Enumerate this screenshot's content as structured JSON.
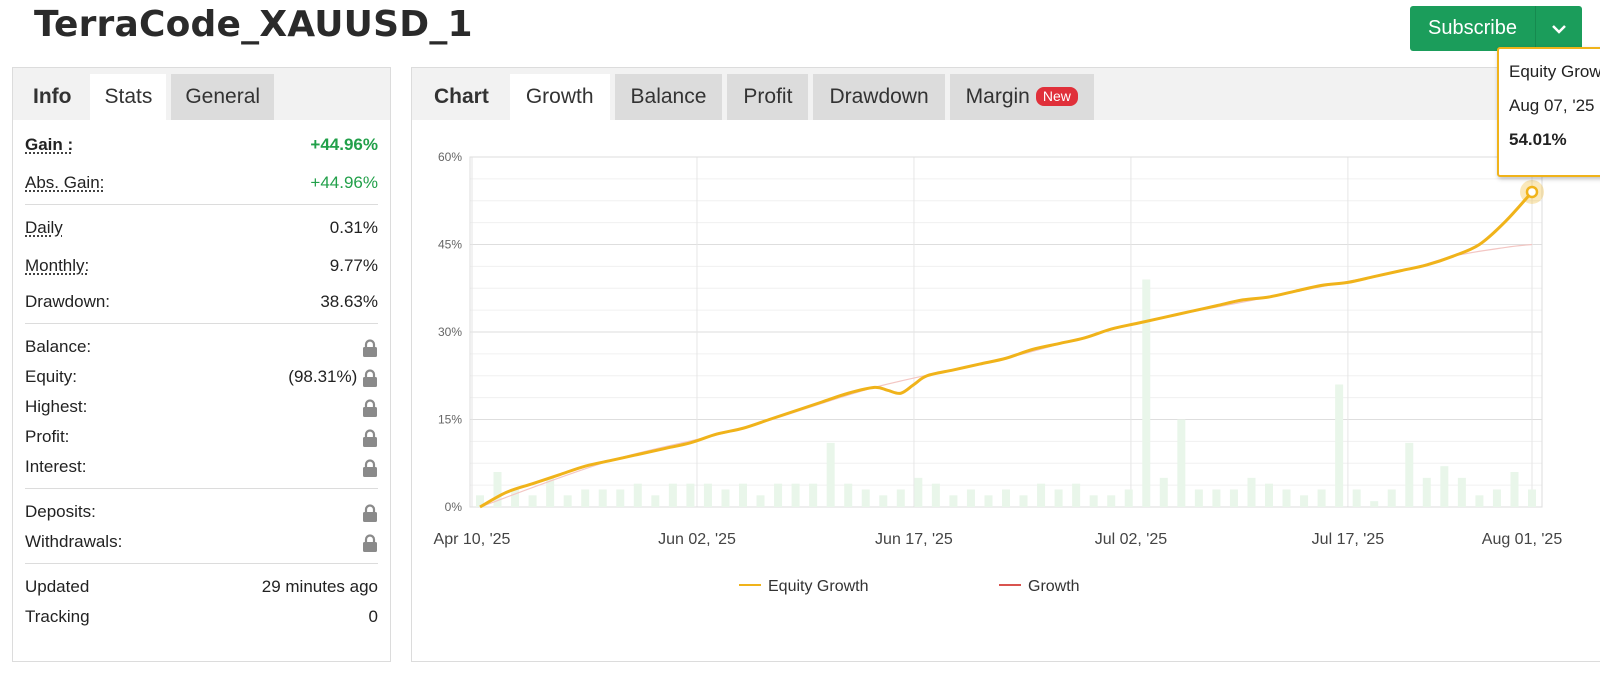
{
  "title": "TerraCode_XAUUSD_1",
  "subscribe": {
    "label": "Subscribe"
  },
  "left_tabs": [
    "Info",
    "Stats",
    "General"
  ],
  "stats": {
    "gain_label": "Gain :",
    "gain_value": "+44.96%",
    "abs_gain_label": "Abs. Gain:",
    "abs_gain_value": "+44.96%",
    "daily_label": "Daily",
    "daily_value": "0.31%",
    "monthly_label": "Monthly:",
    "monthly_value": "9.77%",
    "drawdown_label": "Drawdown:",
    "drawdown_value": "38.63%",
    "balance_label": "Balance:",
    "equity_label": "Equity:",
    "equity_value": "(98.31%)",
    "highest_label": "Highest:",
    "profit_label": "Profit:",
    "interest_label": "Interest:",
    "deposits_label": "Deposits:",
    "withdrawals_label": "Withdrawals:",
    "updated_label": "Updated",
    "updated_value": "29 minutes ago",
    "tracking_label": "Tracking",
    "tracking_value": "0"
  },
  "chart_tabs": {
    "label": "Chart",
    "growth": "Growth",
    "balance": "Balance",
    "profit": "Profit",
    "drawdown": "Drawdown",
    "margin": "Margin",
    "margin_badge": "New"
  },
  "tooltip": {
    "series": "Equity Growth",
    "date": "Aug 07, '25",
    "value": "54.01%"
  },
  "colors": {
    "equity": "#f0b31a",
    "growth": "#d9534f",
    "bars": "#e9f6ea",
    "accent_green": "#1b9d5b"
  },
  "icons": {
    "lock": "lock-icon",
    "dropdown": "chevron-down-icon"
  },
  "chart_data": {
    "type": "line",
    "ylim": [
      0,
      60
    ],
    "yticks": [
      "0%",
      "15%",
      "30%",
      "45%",
      "60%"
    ],
    "xticks": [
      "Apr 10, '25",
      "Jun 02, '25",
      "Jun 17, '25",
      "Jul 02, '25",
      "Jul 17, '25",
      "Aug 01, '25"
    ],
    "legend": [
      "Equity Growth",
      "Growth"
    ],
    "series": [
      {
        "name": "Equity Growth",
        "points": [
          [
            0,
            0
          ],
          [
            2,
            2.5
          ],
          [
            4,
            4
          ],
          [
            6,
            5.5
          ],
          [
            8,
            7
          ],
          [
            10,
            8
          ],
          [
            12,
            9
          ],
          [
            14,
            10
          ],
          [
            16,
            11
          ],
          [
            18,
            12.5
          ],
          [
            20,
            13.5
          ],
          [
            22,
            15
          ],
          [
            24,
            16.5
          ],
          [
            26,
            18
          ],
          [
            28,
            19.5
          ],
          [
            30,
            20.5
          ],
          [
            31,
            20
          ],
          [
            32,
            19.5
          ],
          [
            33,
            21
          ],
          [
            34,
            22.5
          ],
          [
            36,
            23.5
          ],
          [
            38,
            24.5
          ],
          [
            40,
            25.5
          ],
          [
            42,
            27
          ],
          [
            44,
            28
          ],
          [
            46,
            29
          ],
          [
            48,
            30.5
          ],
          [
            50,
            31.5
          ],
          [
            52,
            32.5
          ],
          [
            54,
            33.5
          ],
          [
            56,
            34.5
          ],
          [
            58,
            35.5
          ],
          [
            60,
            36
          ],
          [
            62,
            37
          ],
          [
            64,
            38
          ],
          [
            66,
            38.5
          ],
          [
            68,
            39.5
          ],
          [
            70,
            40.5
          ],
          [
            72,
            41.5
          ],
          [
            74,
            43
          ],
          [
            76,
            45
          ],
          [
            78,
            49
          ],
          [
            80,
            54.01
          ]
        ]
      },
      {
        "name": "Growth",
        "points": [
          [
            0,
            0
          ],
          [
            10,
            8
          ],
          [
            20,
            13.5
          ],
          [
            30,
            20.5
          ],
          [
            40,
            25.5
          ],
          [
            50,
            31.5
          ],
          [
            60,
            36
          ],
          [
            70,
            40.5
          ],
          [
            74,
            43
          ],
          [
            78,
            44.5
          ],
          [
            80,
            45
          ]
        ]
      }
    ],
    "bars": [
      2,
      6,
      3,
      2,
      5,
      2,
      3,
      3,
      3,
      4,
      2,
      4,
      4,
      4,
      3,
      4,
      2,
      4,
      4,
      4,
      11,
      4,
      3,
      2,
      3,
      5,
      4,
      2,
      3,
      2,
      3,
      2,
      4,
      3,
      4,
      2,
      2,
      3,
      39,
      5,
      15,
      3,
      3,
      3,
      5,
      4,
      3,
      2,
      3,
      21,
      3,
      1,
      3,
      11,
      5,
      7,
      5,
      2,
      3,
      6,
      3
    ]
  }
}
